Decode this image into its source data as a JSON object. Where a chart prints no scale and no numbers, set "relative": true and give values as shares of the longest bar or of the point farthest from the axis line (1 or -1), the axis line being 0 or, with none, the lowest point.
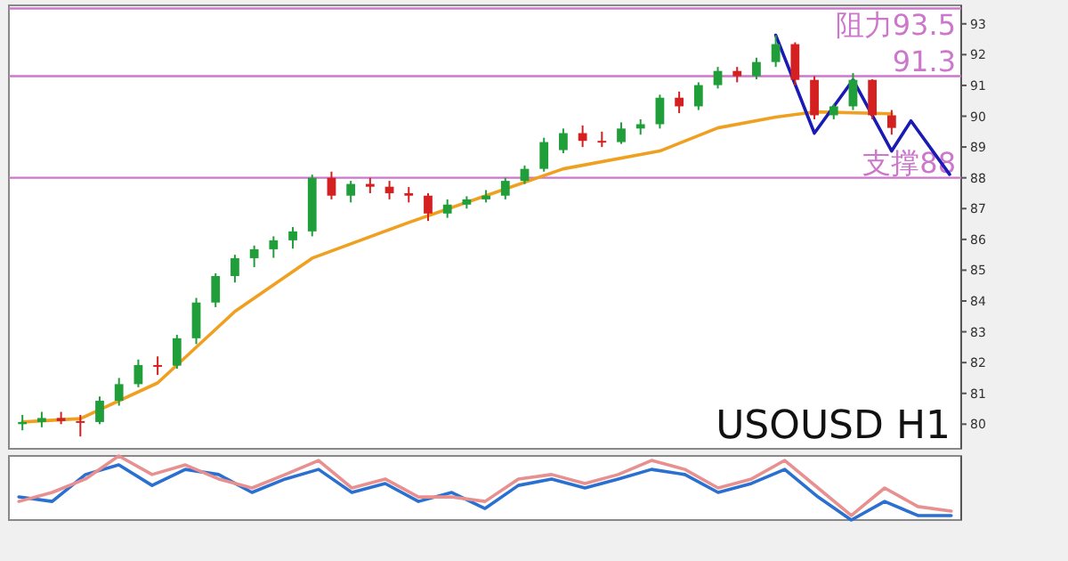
{
  "chart_data": [
    {
      "type": "candlestick",
      "annotations": [
        "USOUSD H1"
      ],
      "tick_labels": "y",
      "ylim": [
        79.2,
        93.6
      ],
      "yticks": [
        80,
        81,
        82,
        83,
        84,
        85,
        86,
        87,
        88,
        89,
        90,
        91,
        92,
        93
      ],
      "categories": [
        null,
        null,
        null,
        null,
        null,
        null,
        null,
        null,
        null,
        null,
        null,
        null,
        null,
        null,
        null,
        null,
        null,
        null,
        null,
        null,
        null,
        null,
        null,
        null,
        null,
        null,
        null,
        null,
        null,
        null,
        null,
        null,
        null,
        null,
        null,
        null,
        null,
        null,
        null,
        null,
        null,
        null,
        null,
        null,
        null,
        null,
        null,
        null,
        null
      ],
      "ohlc": [
        [
          80.0,
          80.3,
          79.8,
          80.07
        ],
        [
          80.07,
          80.4,
          79.9,
          80.2
        ],
        [
          80.2,
          80.4,
          80.0,
          80.1
        ],
        [
          80.1,
          80.3,
          79.6,
          80.07
        ],
        [
          80.07,
          80.9,
          80.0,
          80.76
        ],
        [
          80.76,
          81.5,
          80.6,
          81.3
        ],
        [
          81.3,
          82.1,
          81.2,
          81.92
        ],
        [
          81.92,
          82.2,
          81.6,
          81.9
        ],
        [
          81.9,
          82.9,
          81.8,
          82.79
        ],
        [
          82.79,
          84.1,
          82.6,
          83.95
        ],
        [
          83.95,
          84.9,
          83.8,
          84.81
        ],
        [
          84.81,
          85.5,
          84.6,
          85.39
        ],
        [
          85.39,
          85.8,
          85.1,
          85.68
        ],
        [
          85.68,
          86.1,
          85.4,
          85.97
        ],
        [
          85.97,
          86.4,
          85.7,
          86.26
        ],
        [
          86.26,
          88.1,
          86.1,
          88.0
        ],
        [
          88.0,
          88.2,
          87.3,
          87.42
        ],
        [
          87.42,
          87.9,
          87.2,
          87.8
        ],
        [
          87.8,
          88.0,
          87.5,
          87.71
        ],
        [
          87.71,
          87.9,
          87.3,
          87.5
        ],
        [
          87.5,
          87.7,
          87.2,
          87.42
        ],
        [
          87.42,
          87.5,
          86.6,
          86.84
        ],
        [
          86.84,
          87.3,
          86.7,
          87.13
        ],
        [
          87.13,
          87.4,
          87.0,
          87.3
        ],
        [
          87.3,
          87.6,
          87.2,
          87.42
        ],
        [
          87.42,
          88.0,
          87.3,
          87.9
        ],
        [
          87.9,
          88.4,
          87.8,
          88.29
        ],
        [
          88.29,
          89.3,
          88.2,
          89.16
        ],
        [
          88.9,
          89.6,
          88.8,
          89.45
        ],
        [
          89.45,
          89.7,
          89.0,
          89.2
        ],
        [
          89.2,
          89.5,
          89.0,
          89.16
        ],
        [
          89.16,
          89.8,
          89.1,
          89.6
        ],
        [
          89.6,
          89.9,
          89.4,
          89.74
        ],
        [
          89.74,
          90.7,
          89.6,
          90.6
        ],
        [
          90.6,
          90.8,
          90.1,
          90.32
        ],
        [
          90.32,
          91.1,
          90.2,
          91.01
        ],
        [
          91.01,
          91.6,
          90.9,
          91.47
        ],
        [
          91.47,
          91.6,
          91.1,
          91.3
        ],
        [
          91.3,
          91.9,
          91.2,
          91.76
        ],
        [
          91.76,
          92.63,
          91.6,
          92.34
        ],
        [
          92.34,
          92.4,
          91.0,
          91.18
        ],
        [
          91.18,
          91.3,
          89.9,
          90.03
        ],
        [
          90.03,
          90.4,
          89.9,
          90.32
        ],
        [
          90.32,
          91.4,
          90.2,
          91.18
        ],
        [
          91.18,
          91.2,
          89.9,
          90.03
        ],
        [
          90.03,
          90.2,
          89.4,
          89.62
        ],
        null,
        null,
        null
      ],
      "series": [
        {
          "type": "line",
          "color": "#f0a020",
          "values": [
            80.07,
            null,
            null,
            80.18,
            null,
            null,
            null,
            81.34,
            null,
            null,
            null,
            83.66,
            null,
            null,
            null,
            85.39,
            null,
            null,
            null,
            null,
            86.55,
            null,
            null,
            null,
            87.42,
            null,
            null,
            null,
            88.29,
            null,
            null,
            null,
            null,
            88.87,
            null,
            null,
            89.62,
            null,
            null,
            89.97,
            null,
            90.14,
            null,
            null,
            null,
            90.08,
            null,
            null,
            null
          ]
        },
        {
          "type": "line",
          "color": "#1a1ab4",
          "values": [
            null,
            null,
            null,
            null,
            null,
            null,
            null,
            null,
            null,
            null,
            null,
            null,
            null,
            null,
            null,
            null,
            null,
            null,
            null,
            null,
            null,
            null,
            null,
            null,
            null,
            null,
            null,
            null,
            null,
            null,
            null,
            null,
            null,
            null,
            null,
            null,
            null,
            null,
            null,
            92.63,
            null,
            89.45,
            null,
            91.18,
            null,
            88.87,
            89.85,
            null,
            88.11
          ]
        }
      ],
      "ref_lines": [
        {
          "axis": "y",
          "value": 93.5,
          "label": "阻力93.5",
          "color": "#cc77cc"
        },
        {
          "axis": "y",
          "value": 91.3,
          "label": "91.3",
          "color": "#cc77cc"
        },
        {
          "axis": "y",
          "value": 88,
          "label": "支撑88",
          "color": "#cc77cc"
        }
      ]
    },
    {
      "type": "line",
      "relative": true,
      "tick_labels": false,
      "categories": [
        null,
        null,
        null,
        null,
        null,
        null,
        null,
        null,
        null,
        null,
        null,
        null,
        null,
        null,
        null,
        null,
        null,
        null,
        null,
        null,
        null,
        null,
        null,
        null,
        null,
        null,
        null,
        null,
        null
      ],
      "series": [
        {
          "color": "#2a70d0",
          "values": [
            0.36,
            0.29,
            0.71,
            0.86,
            0.54,
            0.79,
            0.71,
            0.43,
            0.64,
            0.79,
            0.43,
            0.57,
            0.29,
            0.43,
            0.18,
            0.54,
            0.64,
            0.5,
            0.64,
            0.79,
            0.71,
            0.43,
            0.57,
            0.79,
            0.36,
            0,
            0.29,
            0.07,
            0.07
          ]
        },
        {
          "color": "#e89090",
          "values": [
            0.29,
            0.43,
            0.64,
            1.0,
            0.71,
            0.86,
            0.64,
            0.5,
            0.71,
            0.93,
            0.5,
            0.64,
            0.36,
            0.36,
            0.29,
            0.64,
            0.71,
            0.57,
            0.71,
            0.93,
            0.79,
            0.5,
            0.64,
            0.93,
            0.5,
            0.07,
            0.5,
            0.21,
            0.14
          ]
        }
      ]
    }
  ]
}
